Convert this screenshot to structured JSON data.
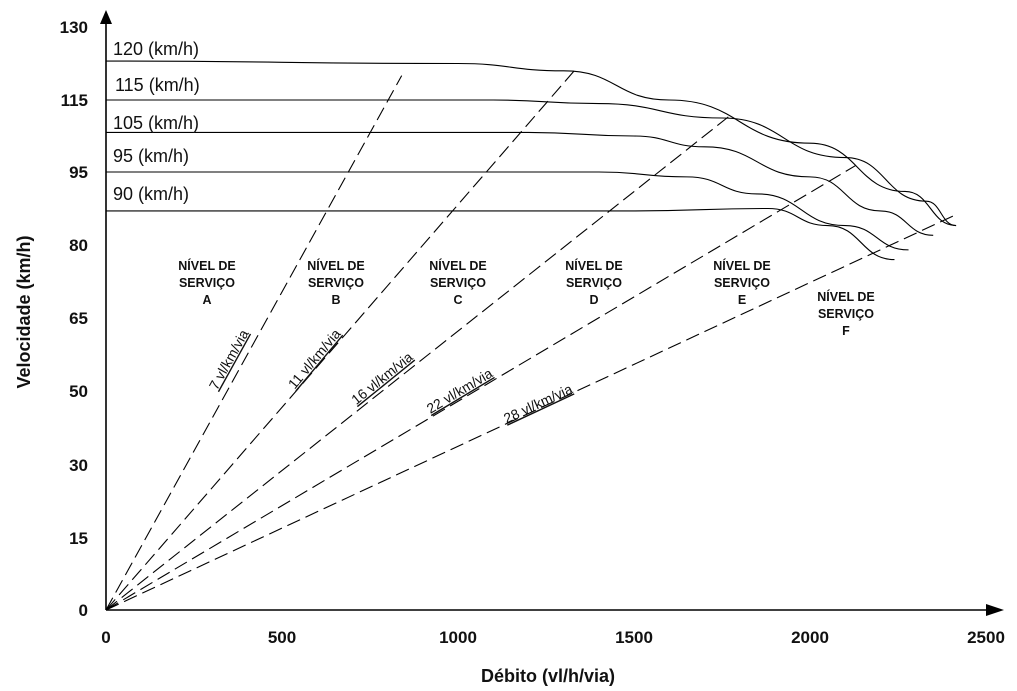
{
  "chart_data": {
    "type": "line",
    "xlabel": "Débito (vl/h/via)",
    "ylabel": "Velocidade (km/h)",
    "xlim": [
      0,
      2500
    ],
    "x_ticks": [
      "0",
      "500",
      "1000",
      "1500",
      "2000",
      "2500"
    ],
    "y_ticks": [
      "0",
      "15",
      "30",
      "50",
      "65",
      "80",
      "95",
      "115",
      "130"
    ],
    "series": [
      {
        "name": "120 (km/h)",
        "x": [
          0,
          1000,
          1300,
          1600,
          2000,
          2270,
          2415
        ],
        "y": [
          123,
          122.5,
          121,
          115,
          103,
          91,
          84
        ]
      },
      {
        "name": "115 (km/h)",
        "x": [
          0,
          1100,
          1400,
          1750,
          2100,
          2330,
          2415
        ],
        "y": [
          115,
          115,
          114,
          110,
          99,
          89,
          84
        ]
      },
      {
        "name": "105 (km/h)",
        "x": [
          0,
          1200,
          1500,
          1700,
          2000,
          2200,
          2350
        ],
        "y": [
          106,
          106,
          105,
          102,
          94,
          87,
          82
        ]
      },
      {
        "name": "95 (km/h)",
        "x": [
          0,
          1400,
          1650,
          1850,
          2100,
          2280
        ],
        "y": [
          95,
          95,
          94,
          90.5,
          84,
          79
        ]
      },
      {
        "name": "90 (km/h)",
        "x": [
          0,
          1500,
          1880,
          2050,
          2240
        ],
        "y": [
          87,
          87,
          87.5,
          84,
          77
        ]
      }
    ],
    "density_lines": [
      {
        "label": "7 vl/km/via",
        "density": 7
      },
      {
        "label": "11 vl/km/via",
        "density": 11
      },
      {
        "label": "16 vl/km/via",
        "density": 16
      },
      {
        "label": "22 vl/km/via",
        "density": 22
      },
      {
        "label": "28 vl/km/via",
        "density": 28
      }
    ],
    "levels_of_service": [
      {
        "line1": "NÍVEL DE",
        "line2": "SERVIÇO",
        "line3": "A"
      },
      {
        "line1": "NÍVEL DE",
        "line2": "SERVIÇO",
        "line3": "B"
      },
      {
        "line1": "NÍVEL DE",
        "line2": "SERVIÇO",
        "line3": "C"
      },
      {
        "line1": "NÍVEL DE",
        "line2": "SERVIÇO",
        "line3": "D"
      },
      {
        "line1": "NÍVEL DE",
        "line2": "SERVIÇO",
        "line3": "E"
      },
      {
        "line1": "NÍVEL DE",
        "line2": "SERVIÇO",
        "line3": "F"
      }
    ]
  }
}
